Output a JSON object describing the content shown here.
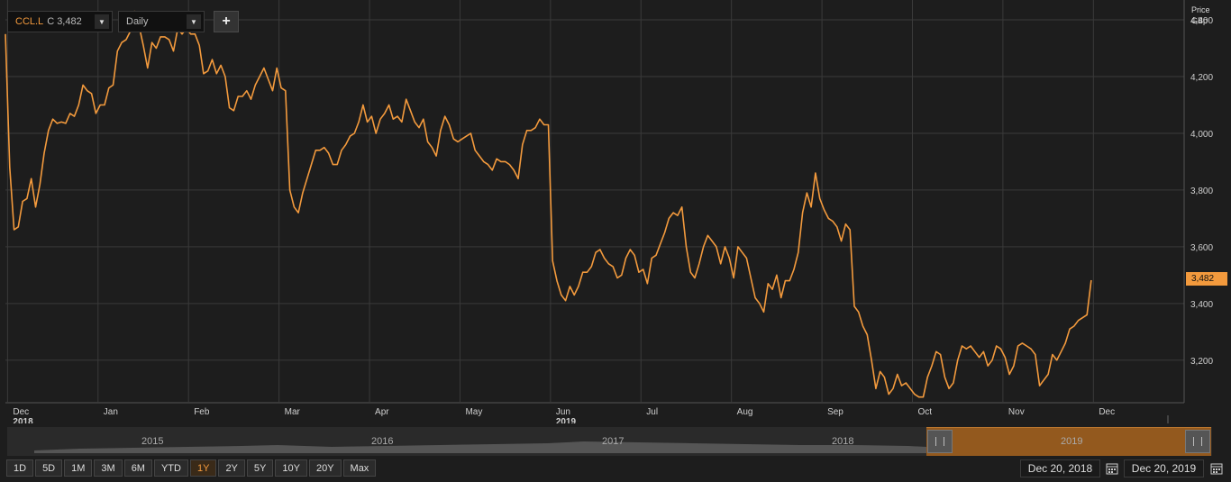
{
  "toolbar": {
    "ric_symbol": "CCL.L",
    "close_label": "C 3,482",
    "interval": "Daily",
    "add_label": "+"
  },
  "axis": {
    "price_label": "Price",
    "unit_label": "GBp",
    "last_value": "3,482"
  },
  "colors": {
    "line": "#f39a3d",
    "background": "#1d1d1d",
    "grid": "#3a3a3a"
  },
  "navigator": {
    "years": [
      "2015",
      "2016",
      "2017",
      "2018",
      "2019"
    ]
  },
  "range_buttons": [
    "1D",
    "5D",
    "1M",
    "3M",
    "6M",
    "YTD",
    "1Y",
    "2Y",
    "5Y",
    "10Y",
    "20Y",
    "Max"
  ],
  "active_range": "1Y",
  "dates": {
    "start": "Dec 20, 2018",
    "end": "Dec 20, 2019"
  },
  "chart_data": {
    "type": "line",
    "title": "",
    "xlabel": "",
    "ylabel": "Price GBp",
    "ylim": [
      3050,
      4470
    ],
    "yticks": [
      3200,
      3400,
      3600,
      3800,
      4000,
      4200,
      4400
    ],
    "ytick_labels": [
      "3,200",
      "3,400",
      "3,600",
      "3,800",
      "4,000",
      "4,200",
      "4,400"
    ],
    "xticks": [
      {
        "label": "Dec",
        "sub": "2018",
        "x": 0.5
      },
      {
        "label": "Jan",
        "x": 21.5
      },
      {
        "label": "Feb",
        "x": 42.5
      },
      {
        "label": "Mar",
        "x": 63.5
      },
      {
        "label": "Apr",
        "x": 84.5
      },
      {
        "label": "May",
        "x": 105.5
      },
      {
        "label": "Jun",
        "sub": "2019",
        "x": 126.5
      },
      {
        "label": "Jul",
        "x": 147.5
      },
      {
        "label": "Aug",
        "x": 168.5
      },
      {
        "label": "Sep",
        "x": 189.5
      },
      {
        "label": "Oct",
        "x": 210.5
      },
      {
        "label": "Nov",
        "x": 231.5
      },
      {
        "label": "Dec",
        "x": 252.5
      }
    ],
    "xlim": [
      0,
      270
    ],
    "grid": true,
    "series": [
      {
        "values": [
          4350,
          3880,
          3660,
          3670,
          3760,
          3770,
          3840,
          3740,
          3820,
          3930,
          4010,
          4050,
          4035,
          4040,
          4035,
          4070,
          4060,
          4100,
          4170,
          4150,
          4140,
          4070,
          4100,
          4100,
          4160,
          4170,
          4290,
          4320,
          4330,
          4360,
          4430,
          4380,
          4310,
          4230,
          4320,
          4300,
          4340,
          4340,
          4330,
          4290,
          4370,
          4350,
          4370,
          4350,
          4350,
          4310,
          4210,
          4220,
          4260,
          4210,
          4240,
          4200,
          4090,
          4080,
          4130,
          4130,
          4150,
          4120,
          4170,
          4200,
          4230,
          4190,
          4150,
          4230,
          4160,
          4150,
          3800,
          3740,
          3720,
          3790,
          3840,
          3890,
          3940,
          3940,
          3950,
          3930,
          3890,
          3890,
          3940,
          3960,
          3990,
          4000,
          4040,
          4100,
          4040,
          4060,
          4000,
          4050,
          4070,
          4100,
          4050,
          4060,
          4040,
          4120,
          4080,
          4040,
          4020,
          4050,
          3970,
          3950,
          3920,
          4010,
          4060,
          4030,
          3980,
          3970,
          3980,
          3990,
          4000,
          3940,
          3920,
          3900,
          3890,
          3870,
          3910,
          3900,
          3900,
          3890,
          3870,
          3840,
          3960,
          4010,
          4010,
          4020,
          4050,
          4030,
          4030,
          3550,
          3480,
          3430,
          3410,
          3460,
          3430,
          3460,
          3510,
          3510,
          3530,
          3580,
          3590,
          3560,
          3540,
          3530,
          3490,
          3500,
          3560,
          3590,
          3570,
          3510,
          3520,
          3470,
          3560,
          3570,
          3610,
          3650,
          3700,
          3720,
          3710,
          3740,
          3600,
          3510,
          3490,
          3540,
          3600,
          3640,
          3620,
          3600,
          3540,
          3600,
          3560,
          3490,
          3600,
          3580,
          3560,
          3490,
          3420,
          3400,
          3370,
          3470,
          3450,
          3500,
          3420,
          3480,
          3480,
          3520,
          3580,
          3720,
          3790,
          3740,
          3860,
          3770,
          3730,
          3700,
          3690,
          3670,
          3620,
          3680,
          3660,
          3390,
          3370,
          3320,
          3290,
          3200,
          3100,
          3160,
          3140,
          3080,
          3100,
          3150,
          3110,
          3120,
          3100,
          3080,
          3070,
          3070,
          3140,
          3180,
          3230,
          3220,
          3140,
          3100,
          3120,
          3200,
          3250,
          3240,
          3250,
          3230,
          3210,
          3230,
          3180,
          3200,
          3250,
          3240,
          3210,
          3150,
          3180,
          3250,
          3260,
          3250,
          3240,
          3220,
          3110,
          3130,
          3150,
          3220,
          3200,
          3230,
          3260,
          3310,
          3320,
          3340,
          3350,
          3360,
          3482
        ]
      }
    ]
  }
}
